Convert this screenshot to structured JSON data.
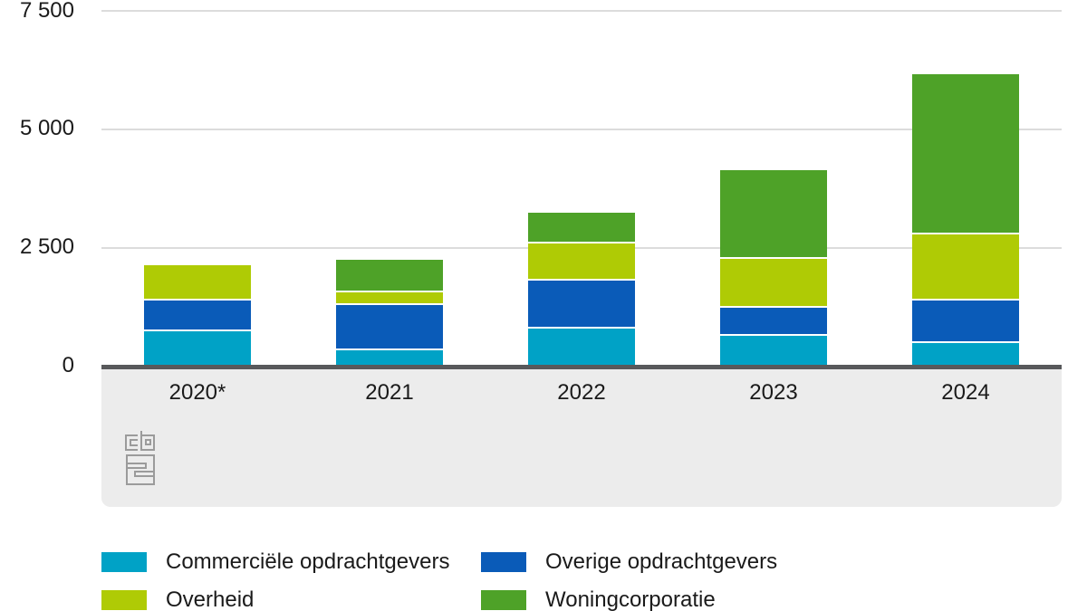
{
  "chart_data": {
    "type": "bar",
    "stacked": true,
    "categories": [
      "2020*",
      "2021",
      "2022",
      "2023",
      "2024"
    ],
    "series": [
      {
        "name": "Commerciële opdrachtgevers",
        "color": "#00a2c6",
        "values": [
          725,
          325,
          780,
          630,
          480
        ]
      },
      {
        "name": "Overige opdrachtgevers",
        "color": "#0a5bb8",
        "values": [
          650,
          955,
          1010,
          590,
          895
        ]
      },
      {
        "name": "Overheid",
        "color": "#afcb05",
        "values": [
          745,
          265,
          785,
          1030,
          1395
        ]
      },
      {
        "name": "Woningcorporatie",
        "color": "#4ea228",
        "values": [
          0,
          685,
          650,
          1870,
          3380
        ]
      }
    ],
    "totals_approx": [
      2120,
      2230,
      3225,
      4120,
      6150
    ],
    "title": "",
    "xlabel": "",
    "ylabel": "",
    "ylim": [
      0,
      7500
    ],
    "yticks": {
      "labels": [
        "7 500",
        "5 000",
        "2 500",
        "0"
      ],
      "values": [
        7500,
        5000,
        2500,
        0
      ]
    },
    "grid": true,
    "legend_position": "bottom",
    "legend_columns": 2
  },
  "style": {
    "gridline_color": "#dcdcdc",
    "axis_line_color": "#58595b",
    "band_color": "#ececec",
    "text_color": "#1a1a1a",
    "logo_color": "#9b9b9b"
  },
  "branding": {
    "logo_name": "CBS"
  }
}
